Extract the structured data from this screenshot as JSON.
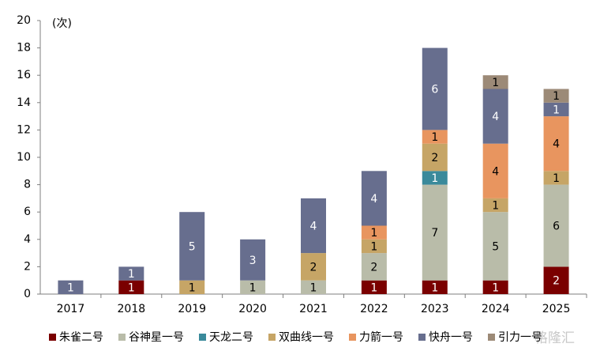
{
  "chart_data": {
    "type": "stacked_bar",
    "annotation": "(次)",
    "watermark": "格隆汇",
    "categories": [
      "2017",
      "2018",
      "2019",
      "2020",
      "2021",
      "2022",
      "2023",
      "2024",
      "2025"
    ],
    "series": [
      {
        "name": "朱雀二号",
        "color": "#7a0000",
        "values": [
          null,
          1,
          null,
          null,
          null,
          1,
          1,
          1,
          2
        ]
      },
      {
        "name": "谷神星一号",
        "color": "#b9bca9",
        "values": [
          null,
          null,
          null,
          1,
          1,
          2,
          7,
          5,
          6
        ]
      },
      {
        "name": "天龙二号",
        "color": "#3a8a9b",
        "values": [
          null,
          null,
          null,
          null,
          null,
          null,
          1,
          null,
          null
        ]
      },
      {
        "name": "双曲线一号",
        "color": "#c6a566",
        "values": [
          null,
          null,
          1,
          null,
          2,
          1,
          2,
          1,
          1
        ]
      },
      {
        "name": "力箭一号",
        "color": "#e8955f",
        "values": [
          null,
          null,
          null,
          null,
          null,
          1,
          1,
          4,
          4
        ]
      },
      {
        "name": "快舟一号",
        "color": "#676e8e",
        "values": [
          1,
          1,
          5,
          3,
          4,
          4,
          6,
          4,
          1
        ]
      },
      {
        "name": "引力一号",
        "color": "#9c8a77",
        "values": [
          null,
          null,
          null,
          null,
          null,
          null,
          null,
          1,
          1
        ]
      }
    ],
    "ylim": [
      0,
      20
    ],
    "yticks": [
      0,
      2,
      4,
      6,
      8,
      10,
      12,
      14,
      16,
      18,
      20
    ],
    "grid": false
  }
}
